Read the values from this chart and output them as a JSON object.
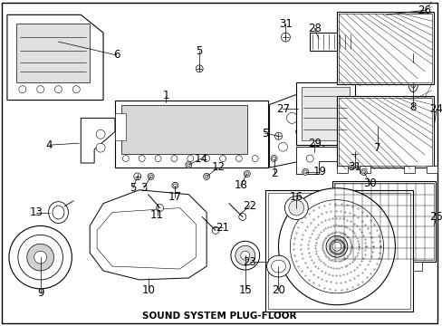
{
  "background_color": "#ffffff",
  "border_color": "#000000",
  "line_color": "#000000",
  "text_color": "#000000",
  "font_size": 8.5,
  "bottom_label": "SOUND SYSTEM PLUG-FLOOR"
}
